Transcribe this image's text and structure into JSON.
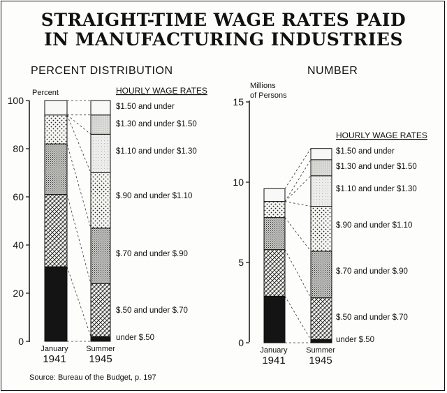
{
  "title_line1": "STRAIGHT-TIME WAGE RATES PAID",
  "title_line2": "IN MANUFACTURING INDUSTRIES",
  "source": "Source: Bureau of the Budget, p. 197",
  "chart_data": [
    {
      "type": "bar",
      "stacked": true,
      "title": "PERCENT DISTRIBUTION",
      "ylabel": "Percent",
      "ylim": [
        0,
        100
      ],
      "yticks": [
        "0",
        "20",
        "40",
        "60",
        "80",
        "100"
      ],
      "categories": [
        [
          "January",
          "1941"
        ],
        [
          "Summer",
          "1945"
        ]
      ],
      "legend_title": "HOURLY WAGE RATES",
      "series": [
        {
          "name": "under $.50",
          "values": [
            31,
            2
          ]
        },
        {
          "name": "$.50 and under $.70",
          "values": [
            30,
            22
          ]
        },
        {
          "name": "$.70 and under $.90",
          "values": [
            21,
            23
          ]
        },
        {
          "name": "$.90 and under $1.10",
          "values": [
            12,
            23
          ]
        },
        {
          "name": "$1.10 and under $1.30",
          "values": [
            0,
            16
          ]
        },
        {
          "name": "$1.30 and under $1.50",
          "values": [
            0,
            8
          ]
        },
        {
          "name": "$1.50 and under",
          "values": [
            6,
            6
          ]
        }
      ]
    },
    {
      "type": "bar",
      "stacked": true,
      "title": "NUMBER",
      "ylabel": "Millions of Persons",
      "ylim": [
        0,
        15
      ],
      "yticks": [
        "0",
        "5",
        "10",
        "15"
      ],
      "categories": [
        [
          "January",
          "1941"
        ],
        [
          "Summer",
          "1945"
        ]
      ],
      "legend_title": "HOURLY WAGE RATES",
      "series": [
        {
          "name": "under $.50",
          "values": [
            2.9,
            0.2
          ]
        },
        {
          "name": "$.50 and under $.70",
          "values": [
            2.9,
            2.6
          ]
        },
        {
          "name": "$.70 and under $.90",
          "values": [
            2.0,
            2.9
          ]
        },
        {
          "name": "$.90 and under $1.10",
          "values": [
            1.0,
            2.8
          ]
        },
        {
          "name": "$1.10 and under $1.30",
          "values": [
            0,
            1.9
          ]
        },
        {
          "name": "$1.30 and under $1.50",
          "values": [
            0,
            1.0
          ]
        },
        {
          "name": "$1.50 and under",
          "values": [
            0.8,
            0.7
          ]
        }
      ]
    }
  ]
}
